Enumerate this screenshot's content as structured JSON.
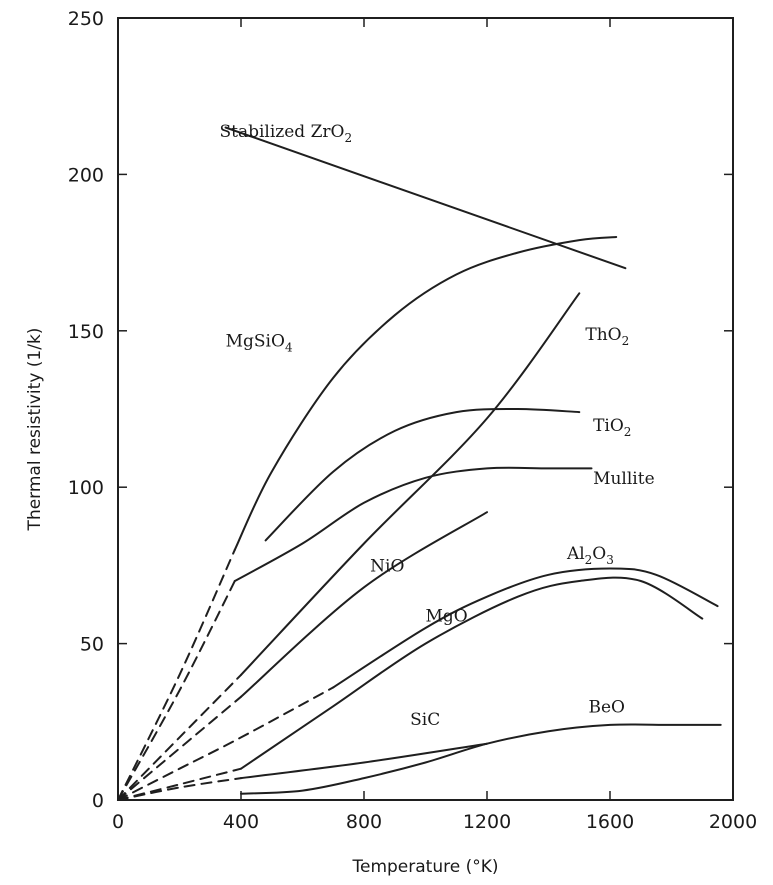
{
  "chart_data": {
    "type": "line",
    "xlabel": "Temperature (°K)",
    "ylabel": "Thermal resistivity (1/k)",
    "xlim": [
      0,
      2000
    ],
    "ylim": [
      0,
      250
    ],
    "x_ticks": [
      0,
      400,
      800,
      1200,
      1600,
      2000
    ],
    "x_tick_labels": [
      "0",
      "400",
      "800",
      "1200",
      "1600",
      "2000"
    ],
    "y_ticks": [
      0,
      50,
      100,
      150,
      200,
      250
    ],
    "y_tick_labels": [
      "0",
      "50",
      "100",
      "150",
      "200",
      "250"
    ],
    "grid": false,
    "series": [
      {
        "name": "Stabilized ZrO2",
        "label": {
          "text": "Stabilized ZrO",
          "sub": "2",
          "x": 330,
          "y": 212
        },
        "points": [
          [
            350,
            215
          ],
          [
            1650,
            170
          ]
        ],
        "dashed_until": null
      },
      {
        "name": "MgSiO4",
        "label": {
          "text": "MgSiO",
          "sub": "4",
          "x": 350,
          "y": 145
        },
        "points": [
          [
            0,
            0
          ],
          [
            200,
            40
          ],
          [
            380,
            80
          ],
          [
            500,
            105
          ],
          [
            700,
            135
          ],
          [
            900,
            155
          ],
          [
            1100,
            168
          ],
          [
            1300,
            175
          ],
          [
            1500,
            179
          ],
          [
            1620,
            180
          ]
        ],
        "dashed_until": 380
      },
      {
        "name": "ThO2",
        "label": {
          "text": "ThO",
          "sub": "2",
          "x": 1520,
          "y": 147
        },
        "points": [
          [
            0,
            0
          ],
          [
            200,
            20
          ],
          [
            400,
            40
          ],
          [
            800,
            82
          ],
          [
            1200,
            122
          ],
          [
            1500,
            162
          ]
        ],
        "dashed_until": 400
      },
      {
        "name": "TiO2",
        "label": {
          "text": "TiO",
          "sub": "2",
          "x": 1545,
          "y": 118
        },
        "points": [
          [
            480,
            83
          ],
          [
            700,
            105
          ],
          [
            900,
            118
          ],
          [
            1100,
            124
          ],
          [
            1300,
            125
          ],
          [
            1500,
            124
          ]
        ],
        "dashed_until": null
      },
      {
        "name": "Mullite",
        "label": {
          "text": "Mullite",
          "sub": "",
          "x": 1545,
          "y": 101
        },
        "points": [
          [
            0,
            0
          ],
          [
            200,
            35
          ],
          [
            380,
            70
          ],
          [
            600,
            82
          ],
          [
            800,
            95
          ],
          [
            1000,
            103
          ],
          [
            1200,
            106
          ],
          [
            1400,
            106
          ],
          [
            1540,
            106
          ]
        ],
        "dashed_until": 380
      },
      {
        "name": "NiO",
        "label": {
          "text": "NiO",
          "sub": "",
          "x": 820,
          "y": 73
        },
        "points": [
          [
            0,
            0
          ],
          [
            400,
            33
          ],
          [
            800,
            68
          ],
          [
            1200,
            92
          ]
        ],
        "dashed_until": 400
      },
      {
        "name": "Al2O3",
        "label": {
          "text": "Al",
          "sub": "2",
          "text2": "O",
          "sub2": "3",
          "x": 1460,
          "y": 77
        },
        "points": [
          [
            0,
            0
          ],
          [
            200,
            10
          ],
          [
            400,
            20
          ],
          [
            700,
            36
          ],
          [
            1000,
            55
          ],
          [
            1200,
            65
          ],
          [
            1400,
            72
          ],
          [
            1600,
            74
          ],
          [
            1750,
            72
          ],
          [
            1950,
            62
          ]
        ],
        "dashed_until": 700
      },
      {
        "name": "MgO",
        "label": {
          "text": "MgO",
          "sub": "",
          "x": 1000,
          "y": 57
        },
        "points": [
          [
            0,
            0
          ],
          [
            200,
            5
          ],
          [
            400,
            10
          ],
          [
            700,
            30
          ],
          [
            1000,
            50
          ],
          [
            1300,
            65
          ],
          [
            1500,
            70
          ],
          [
            1700,
            70
          ],
          [
            1900,
            58
          ]
        ],
        "dashed_until": 400
      },
      {
        "name": "BeO",
        "label": {
          "text": "BeO",
          "sub": "",
          "x": 1530,
          "y": 28
        },
        "points": [
          [
            400,
            2
          ],
          [
            600,
            3
          ],
          [
            800,
            7
          ],
          [
            1000,
            12
          ],
          [
            1200,
            18
          ],
          [
            1400,
            22
          ],
          [
            1600,
            24
          ],
          [
            1800,
            24
          ],
          [
            1960,
            24
          ]
        ],
        "dashed_until": null
      },
      {
        "name": "SiC",
        "label": {
          "text": "SiC",
          "sub": "",
          "x": 950,
          "y": 24
        },
        "points": [
          [
            0,
            0
          ],
          [
            200,
            4
          ],
          [
            400,
            7
          ],
          [
            800,
            12
          ],
          [
            1200,
            18
          ]
        ],
        "dashed_until": 400
      }
    ]
  }
}
